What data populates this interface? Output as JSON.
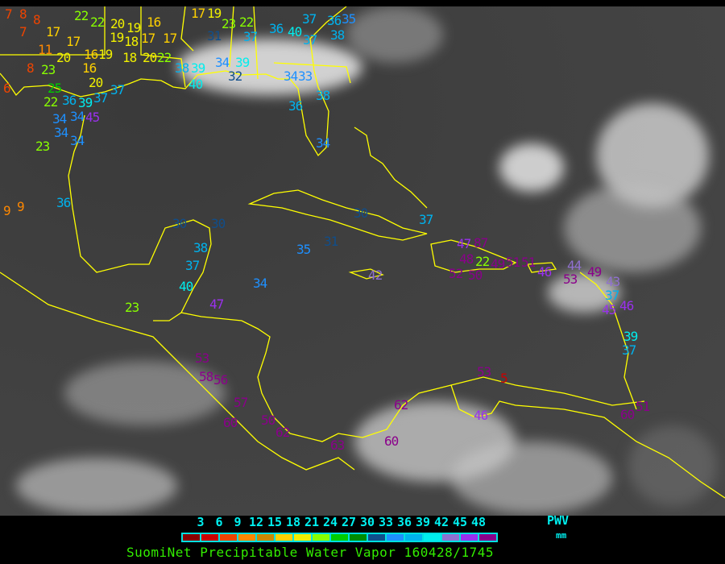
{
  "title": "SuomiNet Precipitable Water Vapor 160428/1745",
  "legend": {
    "unit_label": "PWV",
    "unit": "mm",
    "ticks": [
      "3",
      "6",
      "9",
      "12",
      "15",
      "18",
      "21",
      "24",
      "27",
      "30",
      "33",
      "36",
      "39",
      "42",
      "45",
      "48"
    ],
    "colors": [
      "#8b0000",
      "#cc0000",
      "#ee4400",
      "#ff8800",
      "#cc8800",
      "#ffd000",
      "#f0f000",
      "#88ff00",
      "#00cc00",
      "#008c00",
      "#104e8b",
      "#1e90ff",
      "#00b2ee",
      "#00eeee",
      "#9070d0",
      "#9a30ee",
      "#8b008b"
    ]
  },
  "coastline_color": "#ffff00",
  "stations": [
    "7",
    "8",
    "8",
    "7",
    "17",
    "22",
    "22",
    "20",
    "19",
    "16",
    "19",
    "18",
    "17",
    "17",
    "17",
    "20",
    "16",
    "19",
    "18",
    "20",
    "22",
    "11",
    "8",
    "23",
    "16",
    "20",
    "6",
    "25",
    "22",
    "36",
    "39",
    "37",
    "37",
    "34",
    "34",
    "45",
    "34",
    "34",
    "23",
    "17",
    "19",
    "23",
    "22",
    "31",
    "37",
    "36",
    "40",
    "37",
    "35",
    "36",
    "38",
    "37",
    "38",
    "39",
    "34",
    "39",
    "32",
    "40",
    "34",
    "33",
    "36",
    "38",
    "34",
    "9",
    "9",
    "36",
    "30",
    "30",
    "38",
    "37",
    "40",
    "23",
    "47",
    "34",
    "35",
    "31",
    "30",
    "37",
    "42",
    "47",
    "87",
    "48",
    "22",
    "52",
    "50",
    "49",
    "51",
    "51",
    "46",
    "44",
    "53",
    "49",
    "43",
    "37",
    "45",
    "46",
    "39",
    "37",
    "53",
    "58",
    "56",
    "57",
    "60",
    "50",
    "62",
    "63",
    "60",
    "62",
    "46",
    "53",
    "5",
    "60",
    "51"
  ]
}
